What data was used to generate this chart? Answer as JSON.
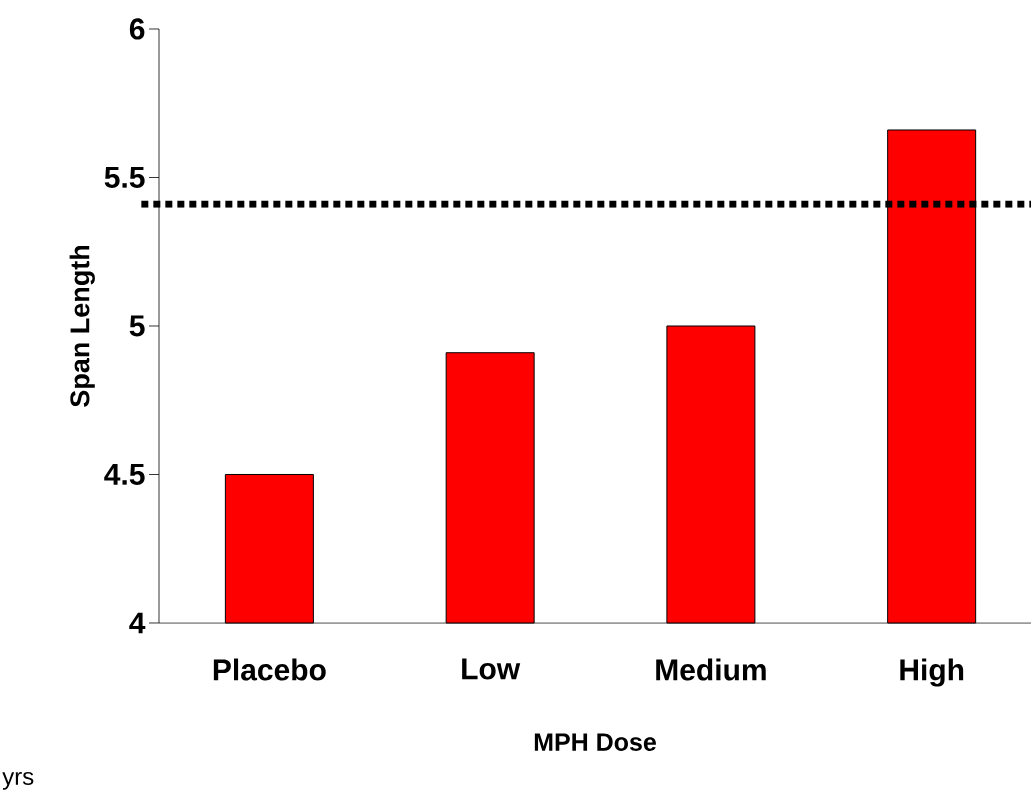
{
  "chart_data": {
    "type": "bar",
    "xlabel": "MPH Dose",
    "ylabel": "Span Length",
    "categories": [
      "Placebo",
      "Low",
      "Medium",
      "High"
    ],
    "values": [
      4.5,
      4.91,
      5.0,
      5.66
    ],
    "color": "#ff0000",
    "ylim": [
      4,
      6
    ],
    "yticks": [
      4,
      4.5,
      5,
      5.5,
      6
    ],
    "grid": false,
    "ref_lines": [
      {
        "axis": "y",
        "value": 5.41,
        "color": "#000000",
        "line_style": "dotted"
      }
    ],
    "annotations": [
      "yrs"
    ]
  }
}
